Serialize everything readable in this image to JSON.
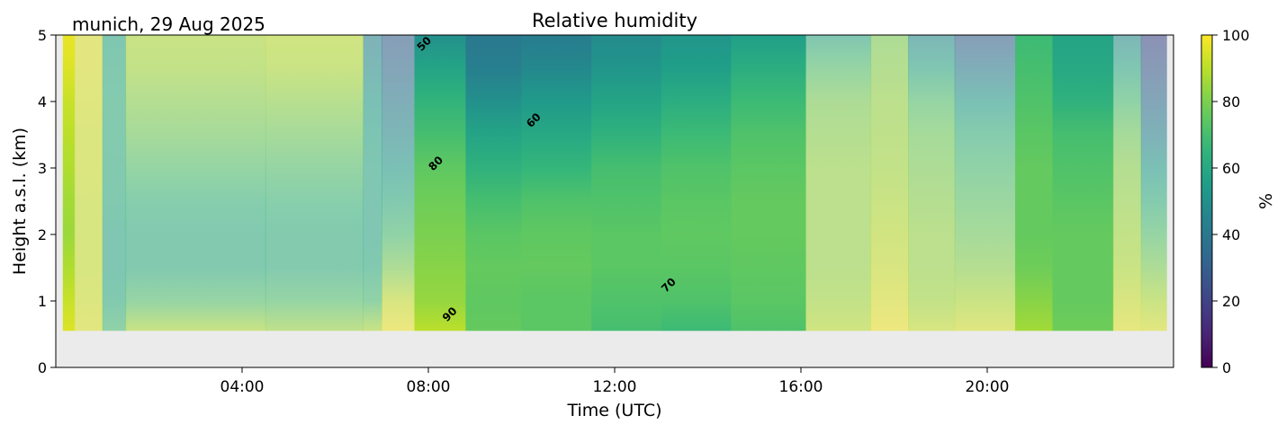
{
  "chart_data": {
    "type": "heatmap",
    "title": "Relative humidity",
    "subtitle": "munich, 29 Aug 2025",
    "xlabel": "Time (UTC)",
    "ylabel": "Height a.s.l. (km)",
    "xlim": [
      0,
      24
    ],
    "ylim": [
      0,
      5
    ],
    "x_ticks": [
      {
        "v": 4,
        "label": "04:00"
      },
      {
        "v": 8,
        "label": "08:00"
      },
      {
        "v": 12,
        "label": "12:00"
      },
      {
        "v": 16,
        "label": "16:00"
      },
      {
        "v": 20,
        "label": "20:00"
      }
    ],
    "y_ticks": [
      {
        "v": 0,
        "label": "0"
      },
      {
        "v": 1,
        "label": "1"
      },
      {
        "v": 2,
        "label": "2"
      },
      {
        "v": 3,
        "label": "3"
      },
      {
        "v": 4,
        "label": "4"
      },
      {
        "v": 5,
        "label": "5"
      }
    ],
    "colorbar": {
      "label": "%",
      "range": [
        0,
        100
      ],
      "ticks": [
        {
          "v": 0,
          "label": "0"
        },
        {
          "v": 20,
          "label": "20"
        },
        {
          "v": 40,
          "label": "40"
        },
        {
          "v": 60,
          "label": "60"
        },
        {
          "v": 80,
          "label": "80"
        },
        {
          "v": 100,
          "label": "100"
        }
      ],
      "colormap": "viridis"
    },
    "data_bottom_km": 0.55,
    "heights_km": [
      0.55,
      1.0,
      1.5,
      2.0,
      2.5,
      3.0,
      3.5,
      4.0,
      4.5,
      5.0
    ],
    "columns": [
      {
        "t0": 0.15,
        "t1": 0.4,
        "faded": false,
        "rh": [
          95,
          92,
          88,
          85,
          86,
          88,
          90,
          92,
          95,
          97
        ]
      },
      {
        "t0": 0.4,
        "t1": 1.0,
        "faded": true,
        "rh": [
          95,
          93,
          92,
          92,
          92,
          93,
          93,
          94,
          95,
          95
        ]
      },
      {
        "t0": 1.0,
        "t1": 1.5,
        "faded": true,
        "rh": [
          70,
          62,
          60,
          60,
          62,
          62,
          63,
          63,
          62,
          60
        ]
      },
      {
        "t0": 1.5,
        "t1": 4.5,
        "faded": true,
        "rh": [
          88,
          72,
          62,
          62,
          66,
          72,
          78,
          82,
          86,
          88
        ]
      },
      {
        "t0": 4.5,
        "t1": 6.6,
        "faded": true,
        "rh": [
          85,
          72,
          63,
          63,
          67,
          72,
          78,
          83,
          88,
          90
        ]
      },
      {
        "t0": 6.6,
        "t1": 7.0,
        "faded": true,
        "rh": [
          88,
          70,
          62,
          60,
          60,
          60,
          58,
          55,
          50,
          45
        ]
      },
      {
        "t0": 7.0,
        "t1": 7.7,
        "faded": true,
        "rh": [
          98,
          92,
          80,
          70,
          62,
          55,
          48,
          42,
          35,
          30
        ]
      },
      {
        "t0": 7.7,
        "t1": 8.8,
        "faded": false,
        "rh": [
          90,
          84,
          82,
          80,
          78,
          75,
          70,
          65,
          58,
          50
        ]
      },
      {
        "t0": 8.8,
        "t1": 10.0,
        "faded": false,
        "rh": [
          76,
          75,
          76,
          74,
          70,
          64,
          58,
          50,
          43,
          40
        ]
      },
      {
        "t0": 10.0,
        "t1": 11.5,
        "faded": false,
        "rh": [
          74,
          74,
          76,
          75,
          72,
          66,
          60,
          54,
          47,
          42
        ]
      },
      {
        "t0": 11.5,
        "t1": 13.0,
        "faded": false,
        "rh": [
          70,
          72,
          74,
          74,
          72,
          70,
          64,
          58,
          52,
          48
        ]
      },
      {
        "t0": 13.0,
        "t1": 14.5,
        "faded": false,
        "rh": [
          68,
          72,
          74,
          75,
          74,
          72,
          68,
          62,
          56,
          52
        ]
      },
      {
        "t0": 14.5,
        "t1": 16.1,
        "faded": false,
        "rh": [
          72,
          74,
          75,
          76,
          76,
          74,
          72,
          68,
          62,
          56
        ]
      },
      {
        "t0": 16.1,
        "t1": 17.5,
        "faded": true,
        "rh": [
          90,
          86,
          84,
          84,
          84,
          84,
          82,
          80,
          72,
          60
        ]
      },
      {
        "t0": 17.5,
        "t1": 18.3,
        "faded": true,
        "rh": [
          98,
          95,
          92,
          90,
          88,
          86,
          85,
          84,
          82,
          80
        ]
      },
      {
        "t0": 18.3,
        "t1": 19.3,
        "faded": true,
        "rh": [
          92,
          86,
          84,
          84,
          82,
          80,
          78,
          72,
          60,
          48
        ]
      },
      {
        "t0": 19.3,
        "t1": 20.6,
        "faded": true,
        "rh": [
          94,
          88,
          82,
          78,
          74,
          70,
          65,
          55,
          42,
          30
        ]
      },
      {
        "t0": 20.6,
        "t1": 21.4,
        "faded": false,
        "rh": [
          86,
          82,
          78,
          76,
          76,
          76,
          74,
          72,
          70,
          68
        ]
      },
      {
        "t0": 21.4,
        "t1": 22.7,
        "faded": false,
        "rh": [
          78,
          76,
          76,
          76,
          74,
          72,
          70,
          64,
          60,
          58
        ]
      },
      {
        "t0": 22.7,
        "t1": 23.3,
        "faded": true,
        "rh": [
          96,
          92,
          88,
          86,
          84,
          82,
          78,
          70,
          60,
          48
        ]
      },
      {
        "t0": 23.3,
        "t1": 23.85,
        "faded": true,
        "rh": [
          95,
          88,
          80,
          72,
          64,
          55,
          45,
          36,
          28,
          22
        ]
      }
    ],
    "contour_labels": [
      {
        "text": "50",
        "t": 7.85,
        "h": 4.75
      },
      {
        "text": "60",
        "t": 10.2,
        "h": 3.6
      },
      {
        "text": "80",
        "t": 8.1,
        "h": 2.95
      },
      {
        "text": "90",
        "t": 8.4,
        "h": 0.68
      },
      {
        "text": "70",
        "t": 13.1,
        "h": 1.12
      }
    ]
  }
}
